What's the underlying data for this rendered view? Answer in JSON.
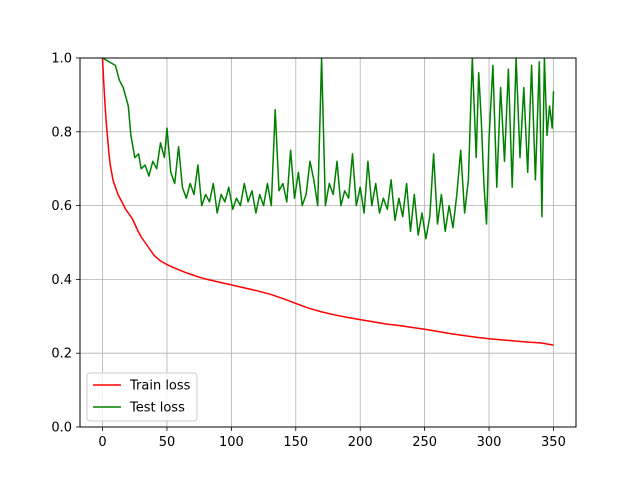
{
  "chart_data": {
    "type": "line",
    "xlim": [
      -17.5,
      367.5
    ],
    "ylim": [
      0.0,
      1.0
    ],
    "x_ticks": [
      0,
      50,
      100,
      150,
      200,
      250,
      300,
      350
    ],
    "y_ticks": [
      0.0,
      0.2,
      0.4,
      0.6,
      0.8,
      1.0
    ],
    "x_tick_labels": [
      "0",
      "50",
      "100",
      "150",
      "200",
      "250",
      "300",
      "350"
    ],
    "y_tick_labels": [
      "0.0",
      "0.2",
      "0.4",
      "0.6",
      "0.8",
      "1.0"
    ],
    "grid": true,
    "legend_position": "lower-left",
    "series": [
      {
        "name": "Train loss",
        "color": "#ff0000",
        "points": [
          [
            0,
            1.0
          ],
          [
            1,
            0.93
          ],
          [
            2,
            0.87
          ],
          [
            3,
            0.82
          ],
          [
            4,
            0.78
          ],
          [
            5,
            0.74
          ],
          [
            6,
            0.71
          ],
          [
            7,
            0.69
          ],
          [
            8,
            0.67
          ],
          [
            10,
            0.65
          ],
          [
            12,
            0.63
          ],
          [
            15,
            0.61
          ],
          [
            18,
            0.59
          ],
          [
            20,
            0.58
          ],
          [
            23,
            0.565
          ],
          [
            25,
            0.55
          ],
          [
            27,
            0.535
          ],
          [
            30,
            0.515
          ],
          [
            33,
            0.5
          ],
          [
            36,
            0.485
          ],
          [
            40,
            0.465
          ],
          [
            45,
            0.45
          ],
          [
            50,
            0.44
          ],
          [
            55,
            0.432
          ],
          [
            60,
            0.425
          ],
          [
            65,
            0.418
          ],
          [
            70,
            0.412
          ],
          [
            75,
            0.406
          ],
          [
            80,
            0.401
          ],
          [
            90,
            0.393
          ],
          [
            100,
            0.385
          ],
          [
            110,
            0.377
          ],
          [
            120,
            0.369
          ],
          [
            130,
            0.36
          ],
          [
            140,
            0.348
          ],
          [
            150,
            0.335
          ],
          [
            160,
            0.322
          ],
          [
            170,
            0.312
          ],
          [
            180,
            0.304
          ],
          [
            190,
            0.297
          ],
          [
            200,
            0.291
          ],
          [
            210,
            0.285
          ],
          [
            220,
            0.279
          ],
          [
            230,
            0.275
          ],
          [
            240,
            0.27
          ],
          [
            250,
            0.265
          ],
          [
            260,
            0.259
          ],
          [
            270,
            0.253
          ],
          [
            280,
            0.248
          ],
          [
            290,
            0.243
          ],
          [
            300,
            0.239
          ],
          [
            310,
            0.236
          ],
          [
            320,
            0.233
          ],
          [
            330,
            0.23
          ],
          [
            340,
            0.228
          ],
          [
            350,
            0.222
          ]
        ]
      },
      {
        "name": "Test loss",
        "color": "#008000",
        "points": [
          [
            0,
            1.0
          ],
          [
            10,
            0.98
          ],
          [
            13,
            0.94
          ],
          [
            16,
            0.92
          ],
          [
            20,
            0.87
          ],
          [
            22,
            0.79
          ],
          [
            25,
            0.73
          ],
          [
            28,
            0.74
          ],
          [
            30,
            0.7
          ],
          [
            33,
            0.71
          ],
          [
            36,
            0.68
          ],
          [
            39,
            0.72
          ],
          [
            42,
            0.7
          ],
          [
            45,
            0.77
          ],
          [
            48,
            0.73
          ],
          [
            50,
            0.81
          ],
          [
            53,
            0.69
          ],
          [
            56,
            0.66
          ],
          [
            59,
            0.76
          ],
          [
            62,
            0.65
          ],
          [
            65,
            0.62
          ],
          [
            68,
            0.66
          ],
          [
            71,
            0.63
          ],
          [
            74,
            0.71
          ],
          [
            77,
            0.6
          ],
          [
            80,
            0.63
          ],
          [
            83,
            0.61
          ],
          [
            86,
            0.66
          ],
          [
            89,
            0.58
          ],
          [
            92,
            0.63
          ],
          [
            95,
            0.61
          ],
          [
            98,
            0.65
          ],
          [
            101,
            0.59
          ],
          [
            104,
            0.62
          ],
          [
            107,
            0.6
          ],
          [
            110,
            0.66
          ],
          [
            113,
            0.61
          ],
          [
            116,
            0.64
          ],
          [
            119,
            0.58
          ],
          [
            122,
            0.63
          ],
          [
            125,
            0.6
          ],
          [
            128,
            0.66
          ],
          [
            131,
            0.6
          ],
          [
            134,
            0.86
          ],
          [
            137,
            0.64
          ],
          [
            140,
            0.66
          ],
          [
            143,
            0.61
          ],
          [
            146,
            0.75
          ],
          [
            149,
            0.62
          ],
          [
            152,
            0.69
          ],
          [
            155,
            0.6
          ],
          [
            158,
            0.63
          ],
          [
            161,
            0.72
          ],
          [
            164,
            0.67
          ],
          [
            167,
            0.6
          ],
          [
            170,
            1.0
          ],
          [
            173,
            0.6
          ],
          [
            176,
            0.66
          ],
          [
            179,
            0.63
          ],
          [
            182,
            0.72
          ],
          [
            185,
            0.6
          ],
          [
            188,
            0.64
          ],
          [
            191,
            0.62
          ],
          [
            194,
            0.74
          ],
          [
            197,
            0.6
          ],
          [
            200,
            0.65
          ],
          [
            203,
            0.58
          ],
          [
            206,
            0.72
          ],
          [
            209,
            0.6
          ],
          [
            212,
            0.66
          ],
          [
            215,
            0.58
          ],
          [
            218,
            0.62
          ],
          [
            221,
            0.59
          ],
          [
            224,
            0.67
          ],
          [
            227,
            0.56
          ],
          [
            230,
            0.62
          ],
          [
            233,
            0.57
          ],
          [
            236,
            0.66
          ],
          [
            239,
            0.53
          ],
          [
            242,
            0.63
          ],
          [
            245,
            0.52
          ],
          [
            248,
            0.58
          ],
          [
            251,
            0.51
          ],
          [
            254,
            0.57
          ],
          [
            257,
            0.74
          ],
          [
            260,
            0.55
          ],
          [
            263,
            0.63
          ],
          [
            266,
            0.53
          ],
          [
            269,
            0.6
          ],
          [
            272,
            0.54
          ],
          [
            275,
            0.63
          ],
          [
            278,
            0.75
          ],
          [
            281,
            0.58
          ],
          [
            284,
            0.67
          ],
          [
            287,
            1.0
          ],
          [
            290,
            0.73
          ],
          [
            292,
            0.96
          ],
          [
            294,
            0.83
          ],
          [
            296,
            0.66
          ],
          [
            298,
            0.55
          ],
          [
            300,
            0.78
          ],
          [
            303,
            0.98
          ],
          [
            306,
            0.65
          ],
          [
            309,
            0.92
          ],
          [
            312,
            0.72
          ],
          [
            315,
            0.97
          ],
          [
            318,
            0.65
          ],
          [
            321,
            1.0
          ],
          [
            324,
            0.73
          ],
          [
            327,
            0.92
          ],
          [
            330,
            0.69
          ],
          [
            333,
            0.98
          ],
          [
            336,
            0.67
          ],
          [
            339,
            0.99
          ],
          [
            341,
            0.57
          ],
          [
            343,
            1.0
          ],
          [
            345,
            0.79
          ],
          [
            347,
            0.87
          ],
          [
            349,
            0.81
          ],
          [
            350,
            0.91
          ]
        ]
      }
    ]
  }
}
